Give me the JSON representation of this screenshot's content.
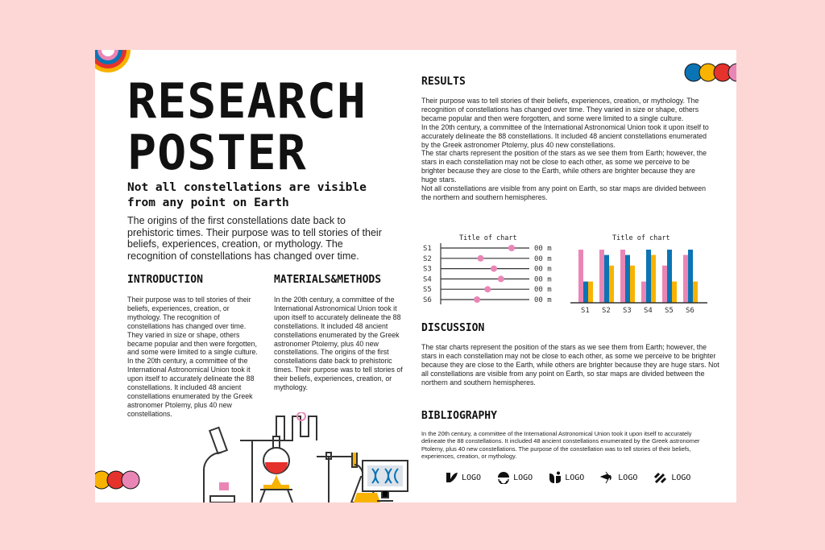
{
  "title": "RESEARCH POSTER",
  "subtitle": "Not all constellations are visible from any point on Earth",
  "lead": "The origins of the first constellations date back to prehistoric times. Their purpose was to tell stories of their beliefs, experiences, creation, or mythology. The recognition of constellations has changed over time.",
  "introduction": {
    "heading": "INTRODUCTION",
    "text": "Their purpose was to tell stories of their beliefs, experiences, creation, or mythology. The recognition of constellations has changed over time. They varied in size or shape, others became popular and then were forgotten, and some were limited to a single culture.\nIn the 20th century, a committee of the International Astronomical Union took it upon itself to accurately delineate the 88 constellations. It included 48 ancient constellations enumerated by the Greek astronomer Ptolemy, plus 40 new constellations."
  },
  "methods": {
    "heading": "MATERIALS&METHODS",
    "text": "In the 20th century, a committee of the International Astronomical Union took it upon itself to accurately delineate the 88 constellations. It included 48 ancient constellations enumerated by the Greek astronomer Ptolemy, plus 40 new constellations. The origins of the first constellations date back to prehistoric times. Their purpose was to tell stories of their beliefs, experiences, creation, or mythology."
  },
  "results": {
    "heading": "RESULTS",
    "text": "Their purpose was to tell stories of their beliefs, experiences, creation, or mythology. The recognition of constellations has changed over time. They varied in size or shape, others became popular and then were forgotten, and some were limited to a single culture.\nIn the 20th century, a committee of the International Astronomical Union took it upon itself to accurately delineate the 88 constellations. It included 48 ancient constellations enumerated by the Greek astronomer Ptolemy, plus 40 new constellations.\nThe star charts represent the position of the stars as we see them from Earth; however, the stars in each constellation may not be close to each other, as some we perceive to be brighter because they are close to the Earth, while others are brighter because they are huge stars.\nNot all constellations are visible from any point on Earth, so star maps are divided between the northern and southern hemispheres."
  },
  "discussion": {
    "heading": "DISCUSSION",
    "text": "The star charts represent the position of the stars as we see them from Earth; however, the stars in each constellation may not be close to each other, as some we perceive to be brighter because they are close to the Earth, while others are brighter because they are huge stars. Not all constellations are visible from any point on Earth, so star maps are divided between the northern and southern hemispheres."
  },
  "bibliography": {
    "heading": "BIBLIOGRAPHY",
    "text": "In the 20th century, a committee of the International Astronomical Union took it upon itself to accurately delineate the 88 constellations. It included 48 ancient constellations enumerated by the Greek astronomer Ptolemy, plus 40 new constellations. The purpose of the constellation was to tell stories of their beliefs, experiences, creation, or mythology."
  },
  "logos": [
    {
      "icon": "leaf-logo-icon",
      "label": "LOGO"
    },
    {
      "icon": "circle-logo-icon",
      "label": "LOGO"
    },
    {
      "icon": "sprout-logo-icon",
      "label": "LOGO"
    },
    {
      "icon": "bird-logo-icon",
      "label": "LOGO"
    },
    {
      "icon": "slashes-logo-icon",
      "label": "LOGO"
    }
  ],
  "colors": {
    "background": "#fdd6d6",
    "pink": "#ea86b6",
    "blue": "#0a74b5",
    "yellow": "#f7b300",
    "red": "#e5322d"
  },
  "chart_data": [
    {
      "type": "scatter",
      "title": "Title of chart",
      "categories": [
        "S1",
        "S2",
        "S3",
        "S4",
        "S5",
        "S6"
      ],
      "values": [
        0.8,
        0.45,
        0.6,
        0.68,
        0.53,
        0.41
      ],
      "value_labels": [
        "00 m",
        "00 m",
        "00 m",
        "00 m",
        "00 m",
        "00 m"
      ],
      "xlim": [
        0,
        1
      ]
    },
    {
      "type": "bar",
      "title": "Title of chart",
      "categories": [
        "S1",
        "S2",
        "S3",
        "S4",
        "S5",
        "S6"
      ],
      "series": [
        {
          "values": [
            100,
            100,
            100,
            40,
            70,
            90
          ]
        },
        {
          "values": [
            40,
            90,
            90,
            100,
            100,
            100
          ]
        },
        {
          "values": [
            40,
            70,
            70,
            90,
            40,
            40
          ]
        }
      ],
      "ylim": [
        0,
        100
      ]
    }
  ]
}
